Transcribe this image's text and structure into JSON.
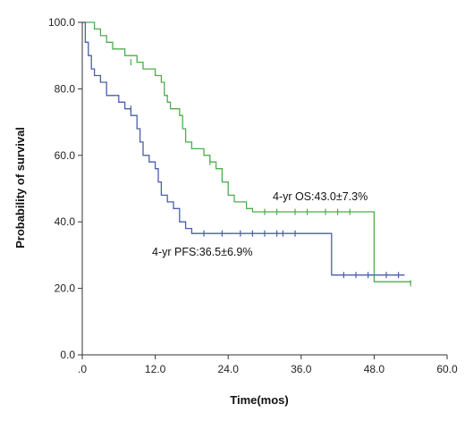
{
  "chart_data": {
    "type": "line",
    "title": "",
    "xlabel": "Time(mos)",
    "ylabel": "Probability of survival",
    "xlim": [
      0,
      60
    ],
    "ylim": [
      0,
      100
    ],
    "x_ticks": [
      0,
      12,
      24,
      36,
      48,
      60
    ],
    "x_tick_labels": [
      ".0",
      "12.0",
      "24.0",
      "36.0",
      "48.0",
      "60.0"
    ],
    "y_ticks": [
      0,
      20,
      40,
      60,
      80,
      100
    ],
    "y_tick_labels": [
      "0.0",
      "20.0",
      "40.0",
      "60.0",
      "80.0",
      "100.0"
    ],
    "grid": false,
    "step": true,
    "series": [
      {
        "name": "",
        "color": "#4cae4c",
        "points": [
          [
            0,
            100
          ],
          [
            2,
            98
          ],
          [
            3,
            96
          ],
          [
            4,
            94
          ],
          [
            5,
            92
          ],
          [
            7,
            90
          ],
          [
            9,
            88
          ],
          [
            10,
            86
          ],
          [
            12,
            84
          ],
          [
            13,
            82
          ],
          [
            13.5,
            78
          ],
          [
            14,
            76
          ],
          [
            14.5,
            74
          ],
          [
            16,
            72
          ],
          [
            16.5,
            68
          ],
          [
            17,
            64
          ],
          [
            18,
            62
          ],
          [
            20,
            60
          ],
          [
            21,
            58
          ],
          [
            22,
            56
          ],
          [
            23,
            52
          ],
          [
            24,
            48
          ],
          [
            25,
            46
          ],
          [
            27,
            44
          ],
          [
            28,
            43
          ],
          [
            48,
            43
          ],
          [
            48,
            22
          ],
          [
            54,
            21.5
          ]
        ],
        "censors": [
          [
            8,
            88
          ],
          [
            21,
            58
          ],
          [
            30,
            43
          ],
          [
            32,
            43
          ],
          [
            35,
            43
          ],
          [
            37,
            43
          ],
          [
            40,
            43
          ],
          [
            42,
            43
          ],
          [
            44,
            43
          ],
          [
            54,
            21.5
          ]
        ]
      },
      {
        "name": "",
        "color": "#4a5fa8",
        "points": [
          [
            0,
            100
          ],
          [
            0.5,
            94
          ],
          [
            1,
            90
          ],
          [
            1.5,
            86
          ],
          [
            2,
            84
          ],
          [
            3,
            82
          ],
          [
            4,
            78
          ],
          [
            6,
            76
          ],
          [
            7,
            74
          ],
          [
            8,
            72
          ],
          [
            9,
            68
          ],
          [
            9.5,
            64
          ],
          [
            10,
            60
          ],
          [
            11,
            58
          ],
          [
            12,
            56
          ],
          [
            12.5,
            52
          ],
          [
            13,
            48
          ],
          [
            14,
            46
          ],
          [
            15,
            44
          ],
          [
            16,
            40
          ],
          [
            17,
            38
          ],
          [
            18,
            36.5
          ],
          [
            41,
            36.5
          ],
          [
            41,
            24
          ],
          [
            53,
            24
          ]
        ],
        "censors": [
          [
            8,
            74
          ],
          [
            20,
            36.5
          ],
          [
            23,
            36.5
          ],
          [
            26,
            36.5
          ],
          [
            28,
            36.5
          ],
          [
            30,
            36.5
          ],
          [
            32,
            36.5
          ],
          [
            33,
            36.5
          ],
          [
            35,
            36.5
          ],
          [
            43,
            24
          ],
          [
            45,
            24
          ],
          [
            47,
            24
          ],
          [
            50,
            24
          ],
          [
            52,
            24
          ]
        ]
      }
    ],
    "annotations": [
      {
        "id": "os",
        "text": "4-yr OS:43.0±7.3%"
      },
      {
        "id": "pfs",
        "text": "4-yr PFS:36.5±6.9%"
      }
    ]
  }
}
